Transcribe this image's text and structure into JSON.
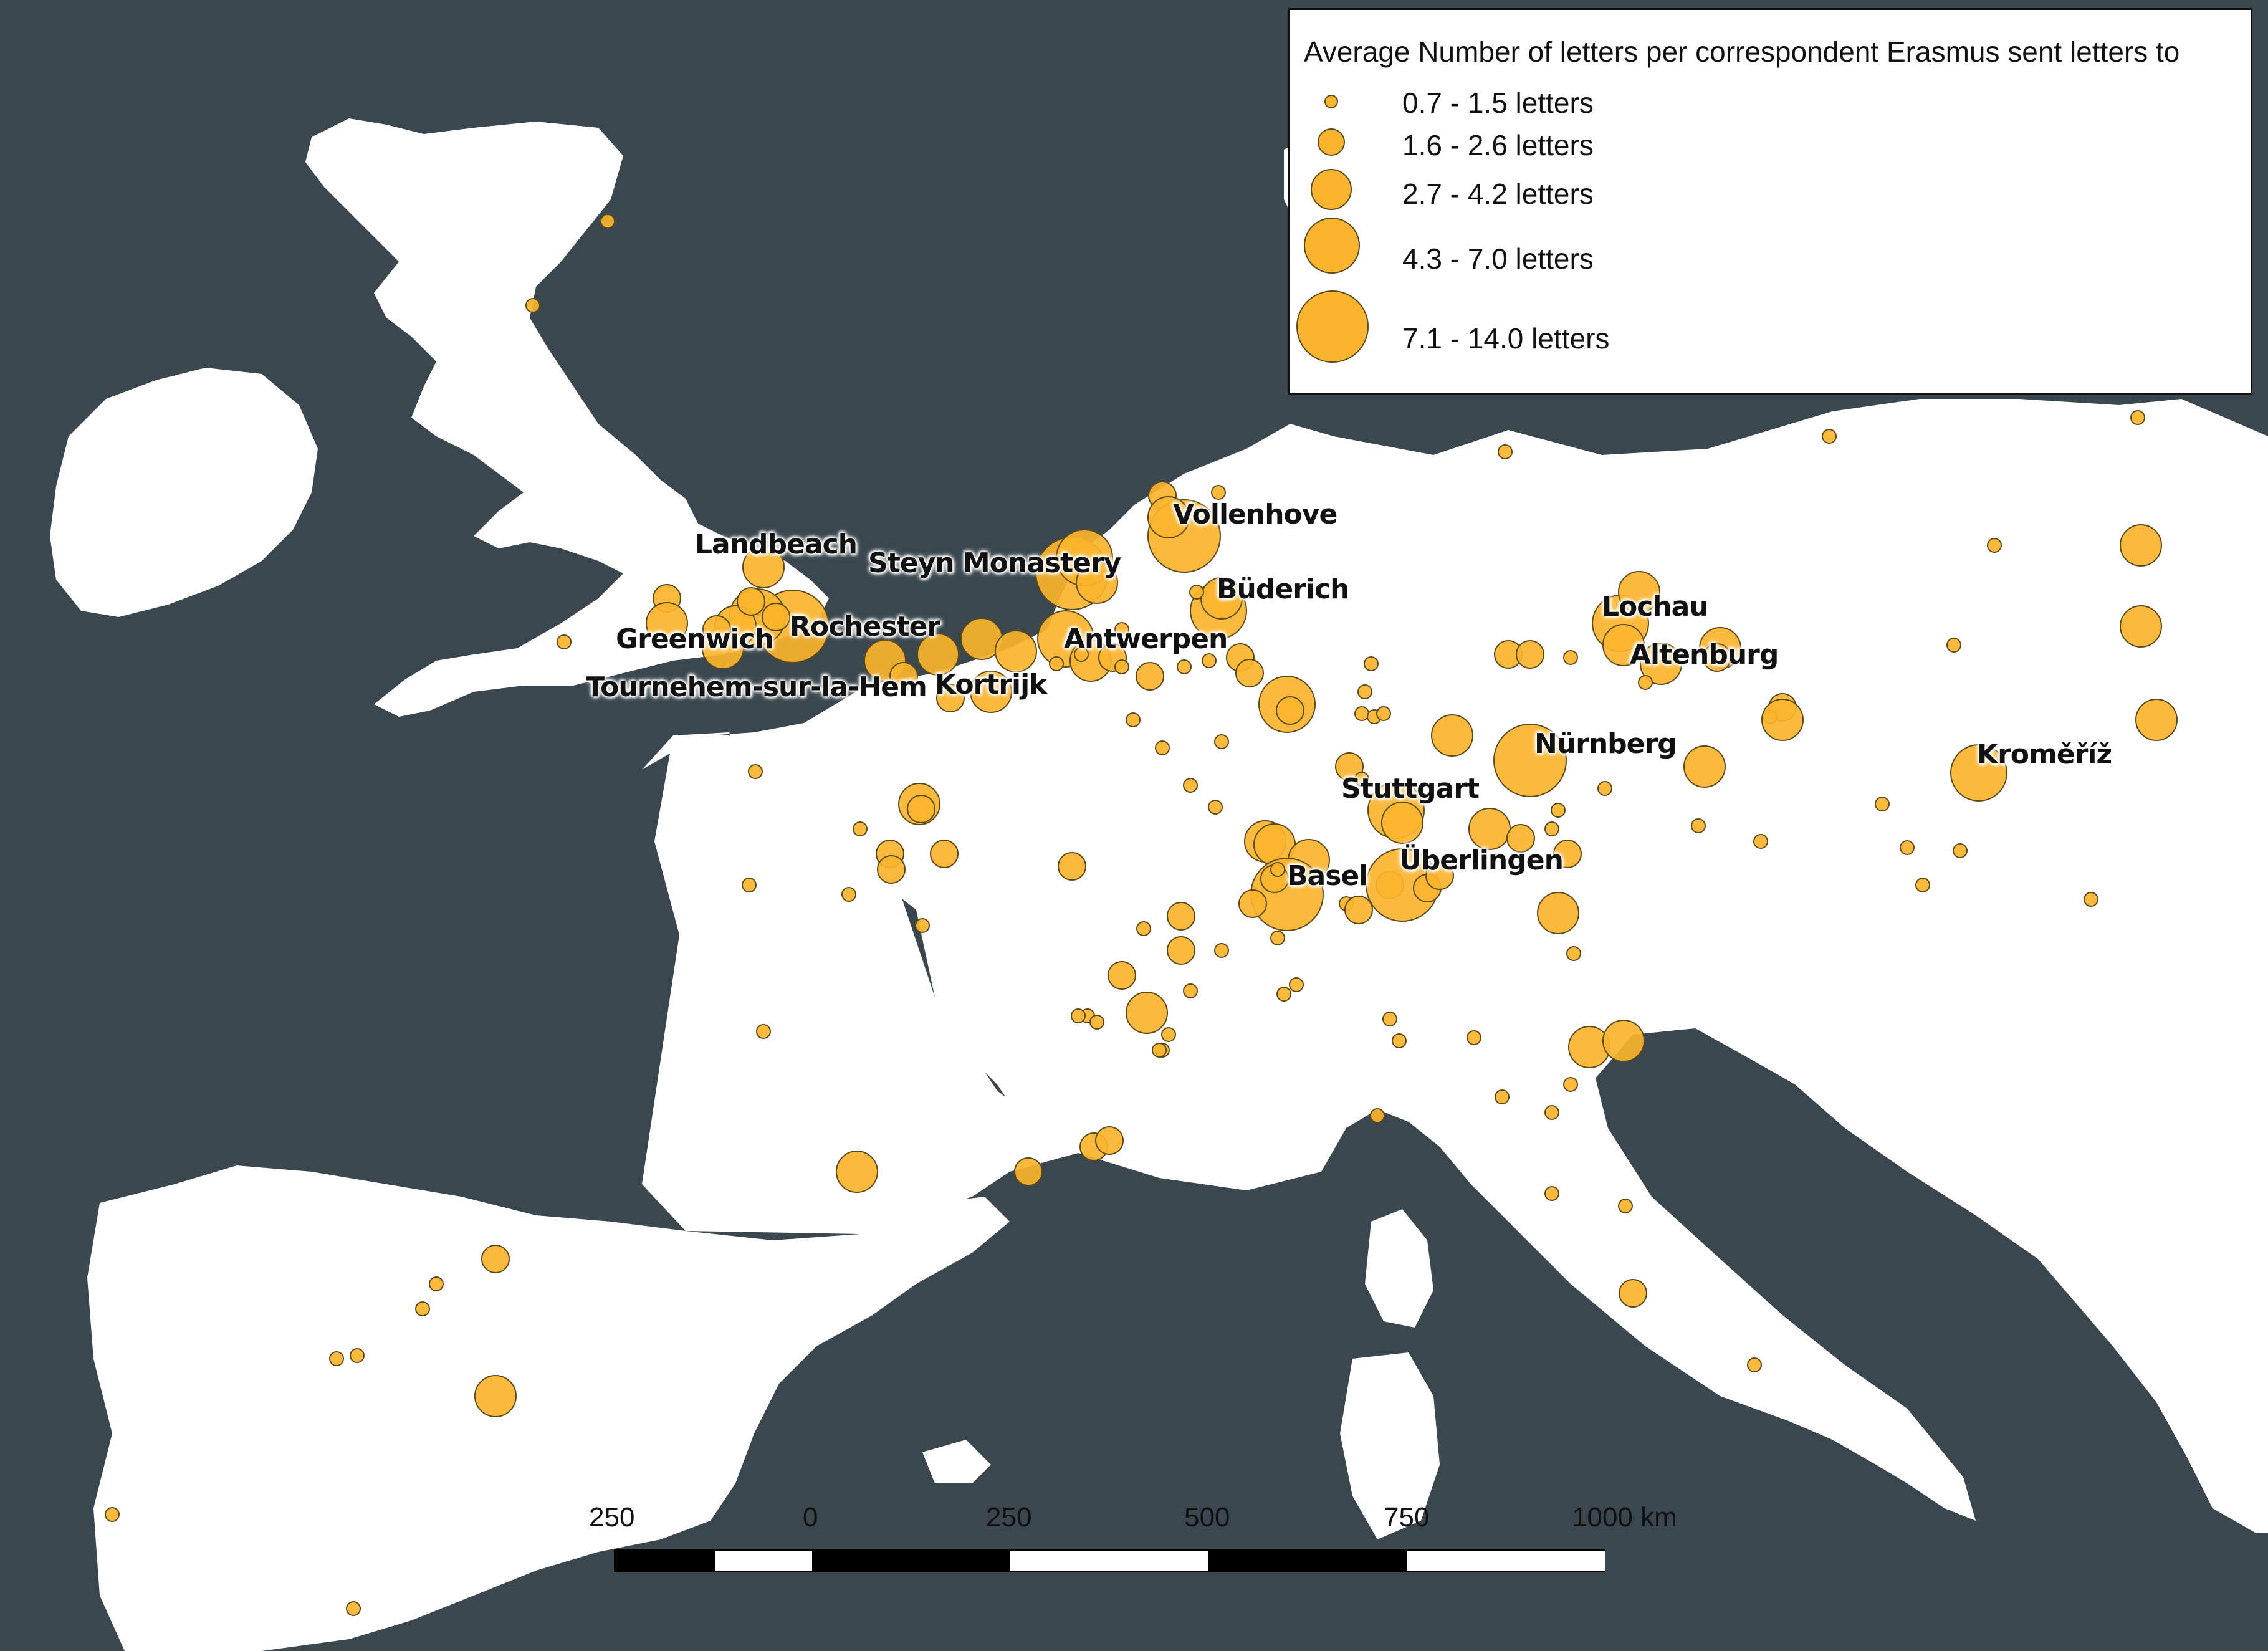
{
  "colors": {
    "sea": "#3a474e",
    "land": "#ffffff",
    "symbol_fill": "#fbb42d",
    "symbol_stroke": "#5a4a1a"
  },
  "legend": {
    "title": "Average Number of letters per correspondent Erasmus sent letters to",
    "classes": [
      {
        "label": "0.7 - 1.5 letters",
        "size": "small"
      },
      {
        "label": "1.6 - 2.6 letters",
        "size": "medium-small"
      },
      {
        "label": "2.7 - 4.2 letters",
        "size": "medium"
      },
      {
        "label": "4.3 - 7.0 letters",
        "size": "large"
      },
      {
        "label": "7.1 - 14.0 letters",
        "size": "largest"
      }
    ]
  },
  "places": [
    {
      "name": "Vollenhove",
      "class": 4
    },
    {
      "name": "Landbeach",
      "class": 3
    },
    {
      "name": "Steyn Monastery",
      "class": 5
    },
    {
      "name": "Büderich",
      "class": 4
    },
    {
      "name": "Greenwich",
      "class": 3
    },
    {
      "name": "Rochester",
      "class": 5
    },
    {
      "name": "Antwerpen",
      "class": 5
    },
    {
      "name": "Tournehem-sur-la-Hem",
      "class": 3
    },
    {
      "name": "Kortrijk",
      "class": 4
    },
    {
      "name": "Lochau",
      "class": 4
    },
    {
      "name": "Altenburg",
      "class": 4
    },
    {
      "name": "Nürnberg",
      "class": 5
    },
    {
      "name": "Kroměříž",
      "class": 4
    },
    {
      "name": "Stuttgart",
      "class": 4
    },
    {
      "name": "Überlingen",
      "class": 4
    },
    {
      "name": "Basel",
      "class": 5
    }
  ],
  "scale_bar": {
    "labels": [
      "250",
      "0",
      "250",
      "500",
      "750",
      "1000 km"
    ]
  }
}
